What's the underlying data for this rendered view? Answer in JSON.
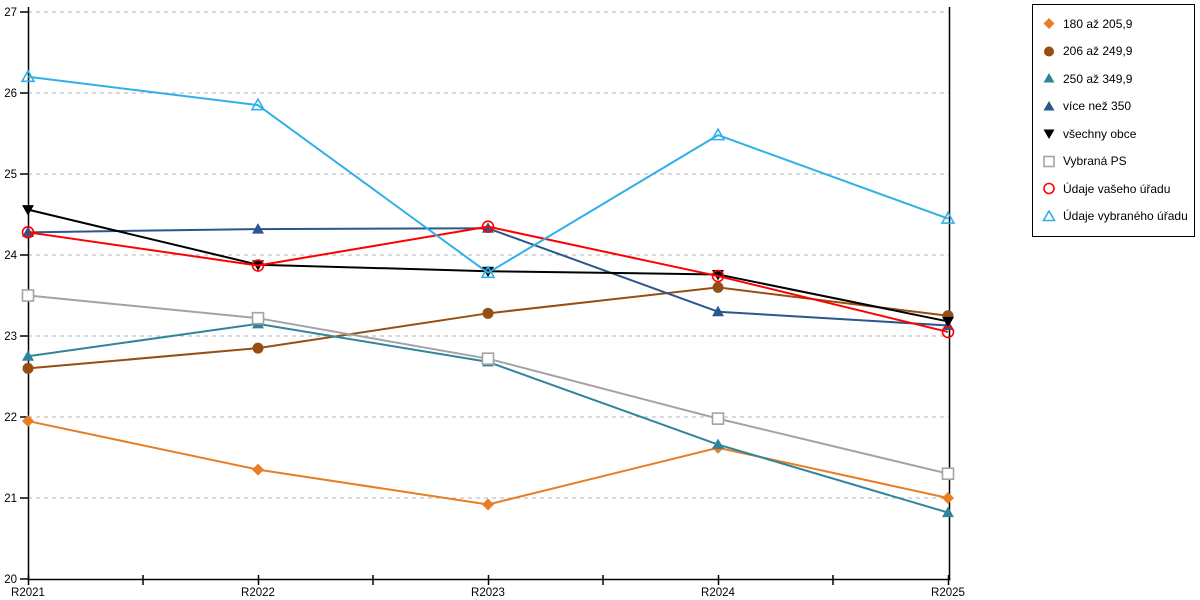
{
  "background_color": "#FFFFFF",
  "chart_data": {
    "type": "line",
    "title": "",
    "xlabel": "",
    "ylabel": "",
    "x_categories": [
      "R2021",
      "R2022",
      "R2023",
      "R2024",
      "R2025"
    ],
    "ylim": [
      20,
      27
    ],
    "y_ticks": [
      20,
      21,
      22,
      23,
      24,
      25,
      26,
      27
    ],
    "grid": "horizontal-dashed",
    "gridline_color": "#B3B3B3",
    "legend_position": "outside-right",
    "series": [
      {
        "name": "180 až 205,9",
        "marker": "diamond",
        "marker_style": "filled",
        "color": "#E87D23",
        "values": [
          21.95,
          21.35,
          20.92,
          21.62,
          21.0
        ]
      },
      {
        "name": "206 až 249,9",
        "marker": "circle",
        "marker_style": "filled",
        "color": "#964E12",
        "values": [
          22.6,
          22.85,
          23.28,
          23.6,
          23.25
        ]
      },
      {
        "name": "250 až 349,9",
        "marker": "triangle-up",
        "marker_style": "filled",
        "color": "#31859B",
        "values": [
          22.75,
          23.15,
          22.68,
          21.66,
          20.82
        ]
      },
      {
        "name": "více než 350",
        "marker": "triangle-up",
        "marker_style": "filled",
        "color": "#2D578C",
        "values": [
          24.28,
          24.32,
          24.33,
          23.3,
          23.13
        ]
      },
      {
        "name": "všechny obce",
        "marker": "triangle-down",
        "marker_style": "filled",
        "color": "#000000",
        "values": [
          24.56,
          23.88,
          23.8,
          23.76,
          23.18
        ]
      },
      {
        "name": "Vybraná PS",
        "marker": "square",
        "marker_style": "open",
        "color": "#A3A3A3",
        "values": [
          23.5,
          23.22,
          22.72,
          21.98,
          21.3
        ]
      },
      {
        "name": "Údaje vašeho úřadu",
        "marker": "circle",
        "marker_style": "open",
        "color": "#FF0000",
        "values": [
          24.28,
          23.87,
          24.35,
          23.74,
          23.05
        ]
      },
      {
        "name": "Údaje vybraného úřadu",
        "marker": "triangle-up",
        "marker_style": "open",
        "color": "#30B0E8",
        "values": [
          26.2,
          25.85,
          23.78,
          25.48,
          24.45
        ]
      }
    ]
  }
}
